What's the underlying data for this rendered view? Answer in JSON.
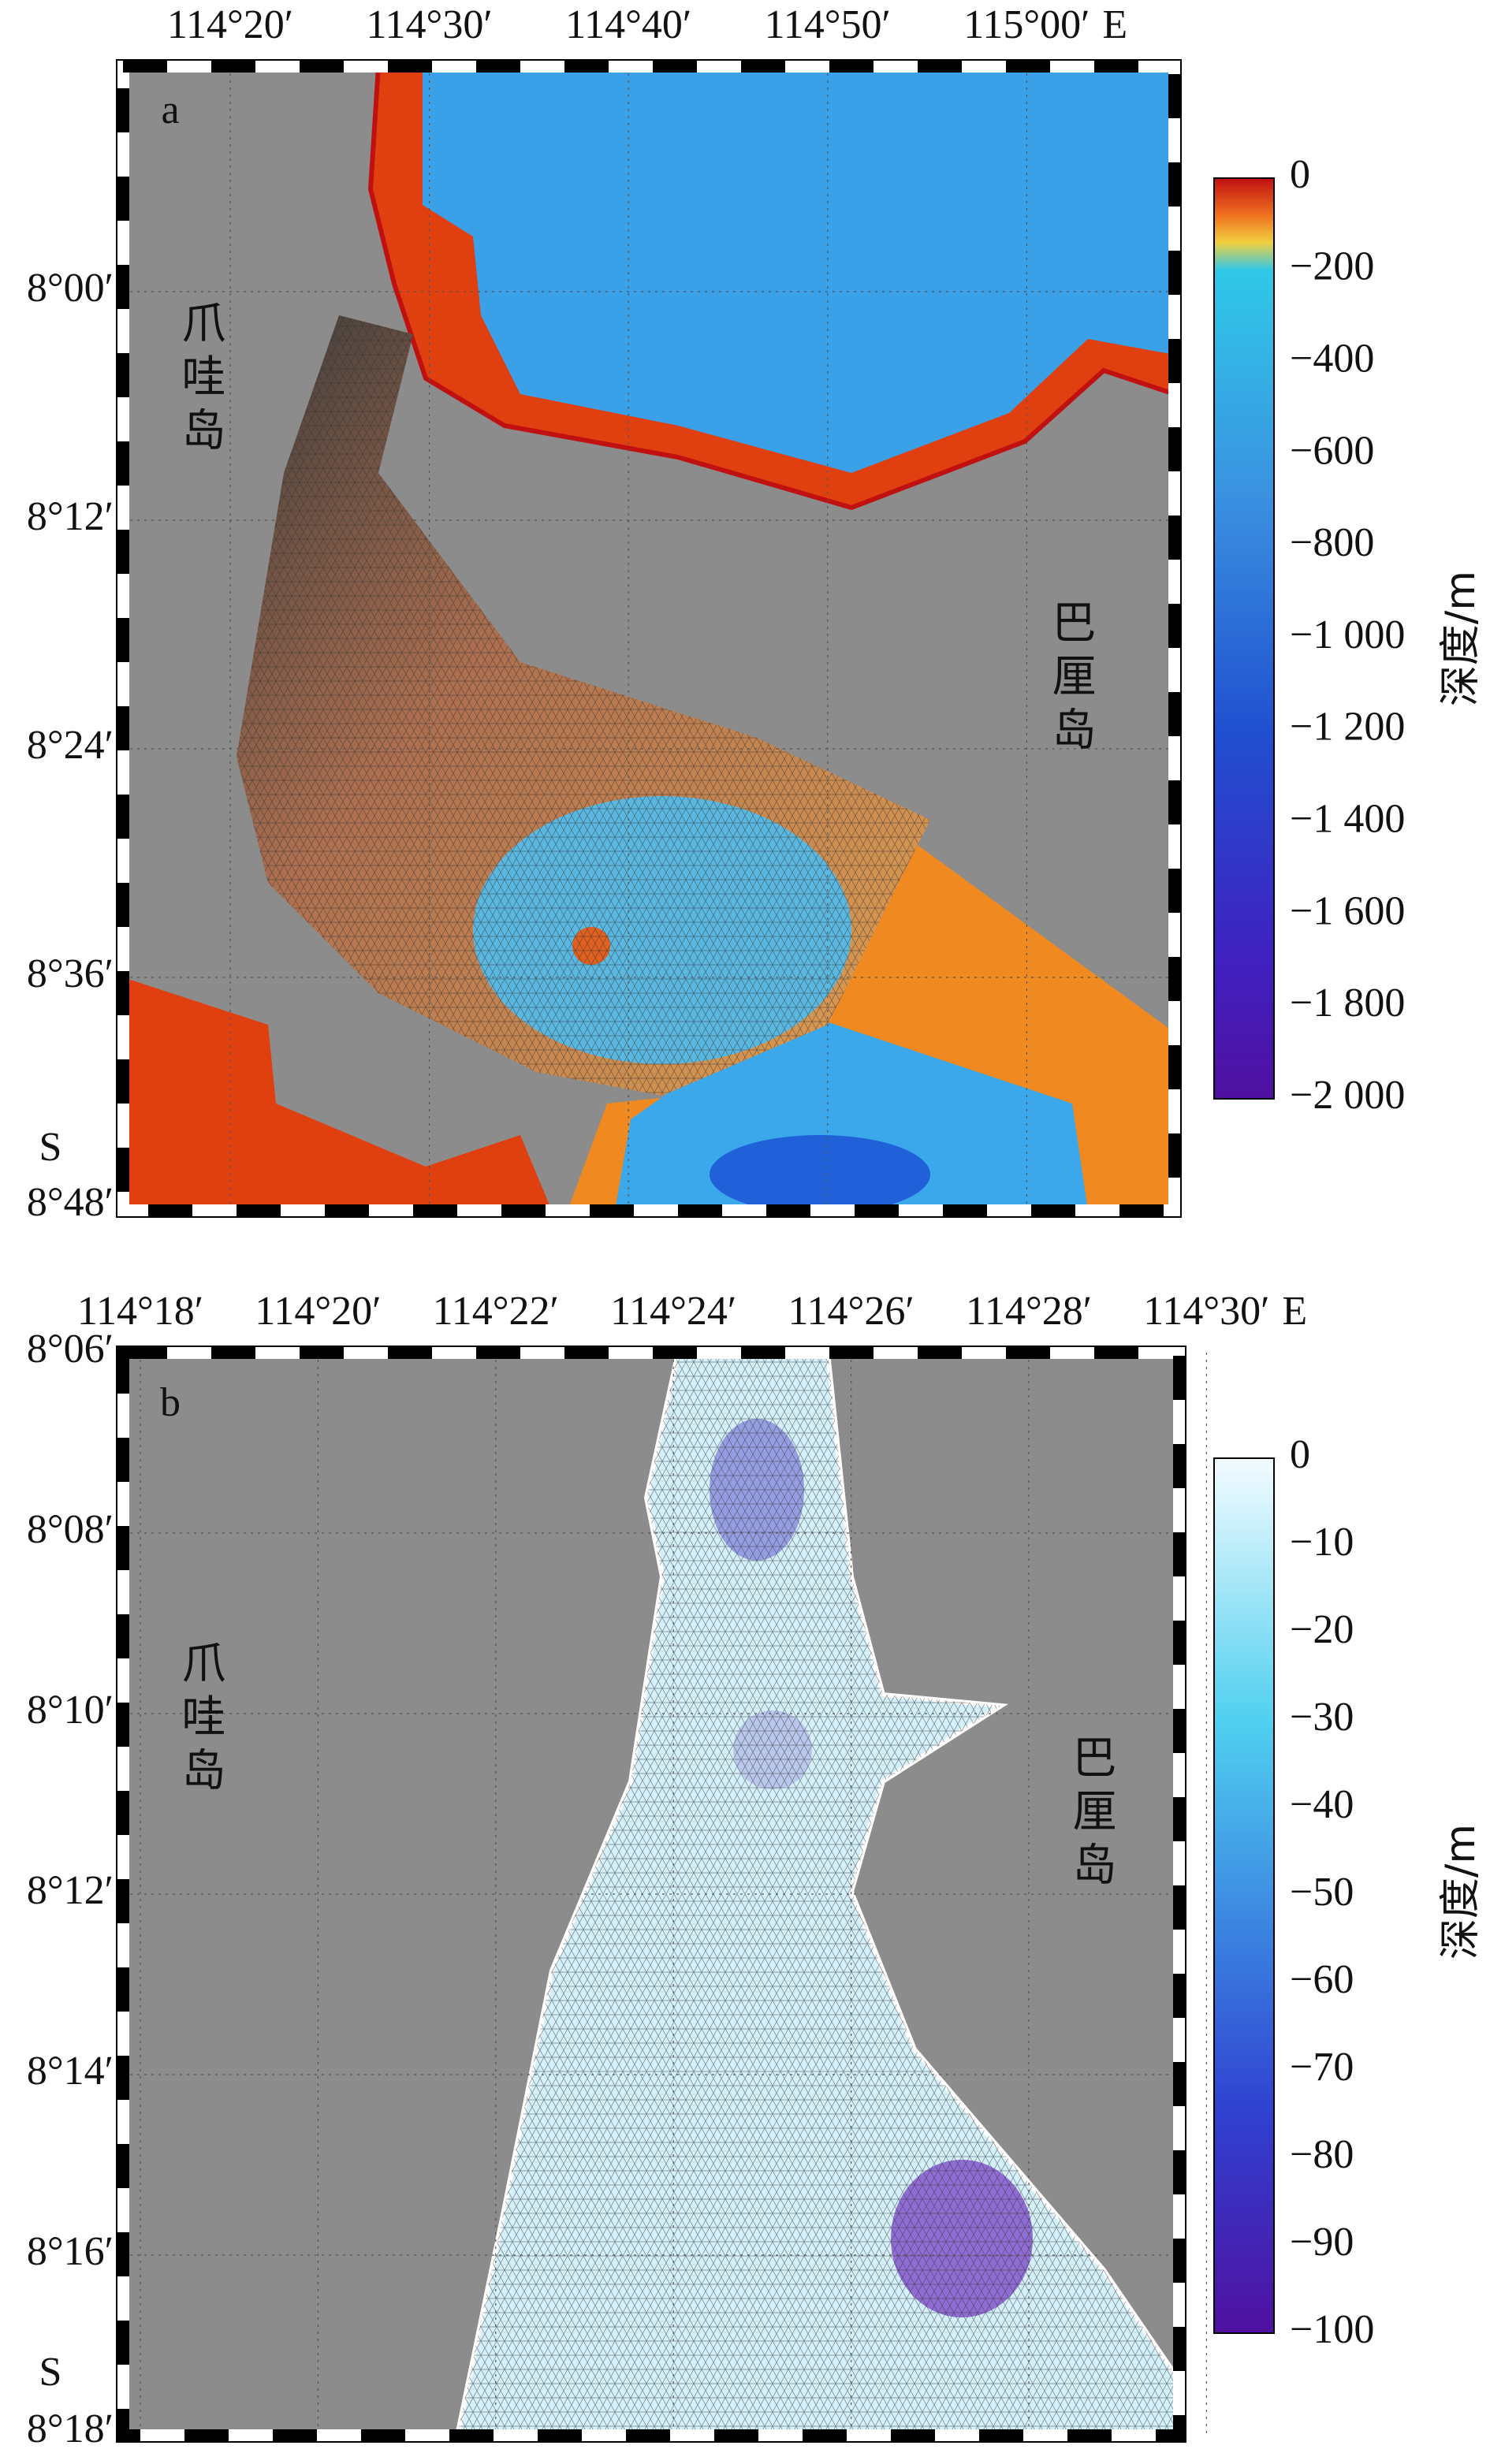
{
  "panels": [
    {
      "letter": "a",
      "x_ticks": [
        "114°20′",
        "114°30′",
        "114°40′",
        "114°50′",
        "115°00′"
      ],
      "x_hemisphere": "E",
      "y_ticks": [
        "8°00′",
        "8°12′",
        "8°24′",
        "8°36′",
        "8°48′"
      ],
      "y_hemisphere": "S",
      "left_island": "爪哇岛",
      "right_island": "巴厘岛",
      "colorbar": {
        "label": "深度/m",
        "lim": [
          -2000,
          0
        ],
        "ticks": [
          0,
          {
            "value": -200,
            "label": "−200"
          },
          {
            "value": -400,
            "label": "−400"
          },
          {
            "value": -600,
            "label": "−600"
          },
          {
            "value": -800,
            "label": "−800"
          },
          {
            "value": -1000,
            "label": "−1 000"
          },
          {
            "value": -1200,
            "label": "−1 200"
          },
          {
            "value": -1400,
            "label": "−1 400"
          },
          {
            "value": -1600,
            "label": "−1 600"
          },
          {
            "value": -1800,
            "label": "−1 800"
          },
          {
            "value": -2000,
            "label": "−2 000"
          }
        ]
      }
    },
    {
      "letter": "b",
      "x_ticks": [
        "114°18′",
        "114°20′",
        "114°22′",
        "114°24′",
        "114°26′",
        "114°28′",
        "114°30′"
      ],
      "x_hemisphere": "E",
      "y_ticks": [
        "8°06′",
        "8°08′",
        "8°10′",
        "8°12′",
        "8°14′",
        "8°16′",
        "8°18′"
      ],
      "y_hemisphere": "S",
      "left_island": "爪哇岛",
      "right_island": "巴厘岛",
      "colorbar": {
        "label": "深度/m",
        "lim": [
          -100,
          0
        ],
        "ticks": [
          0,
          {
            "value": -10,
            "label": "−10"
          },
          {
            "value": -20,
            "label": "−20"
          },
          {
            "value": -30,
            "label": "−30"
          },
          {
            "value": -40,
            "label": "−40"
          },
          {
            "value": -50,
            "label": "−50"
          },
          {
            "value": -60,
            "label": "−60"
          },
          {
            "value": -70,
            "label": "−70"
          },
          {
            "value": -80,
            "label": "−80"
          },
          {
            "value": -90,
            "label": "−90"
          },
          {
            "value": -100,
            "label": "−100"
          }
        ]
      }
    }
  ]
}
